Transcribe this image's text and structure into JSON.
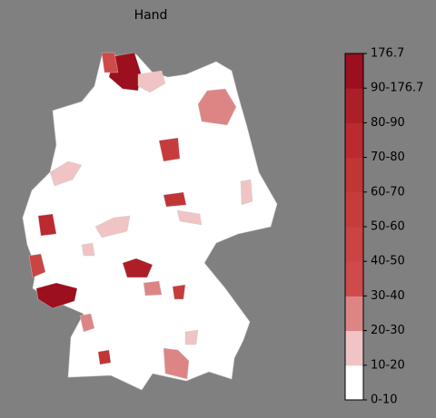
{
  "title": "Hand",
  "colorbar": {
    "labels": [
      "0-10",
      "10-20",
      "20-30",
      "30-40",
      "40-50",
      "50-60",
      "60-70",
      "70-80",
      "80-90",
      "90-176.7",
      "176.7"
    ],
    "colors": [
      "#ffffff",
      "#f0c4c4",
      "#dd8585",
      "#cf4a4a",
      "#cb4444",
      "#c63c3c",
      "#c23535",
      "#bb2a2e",
      "#ad1f28",
      "#9b0f1f"
    ]
  }
}
